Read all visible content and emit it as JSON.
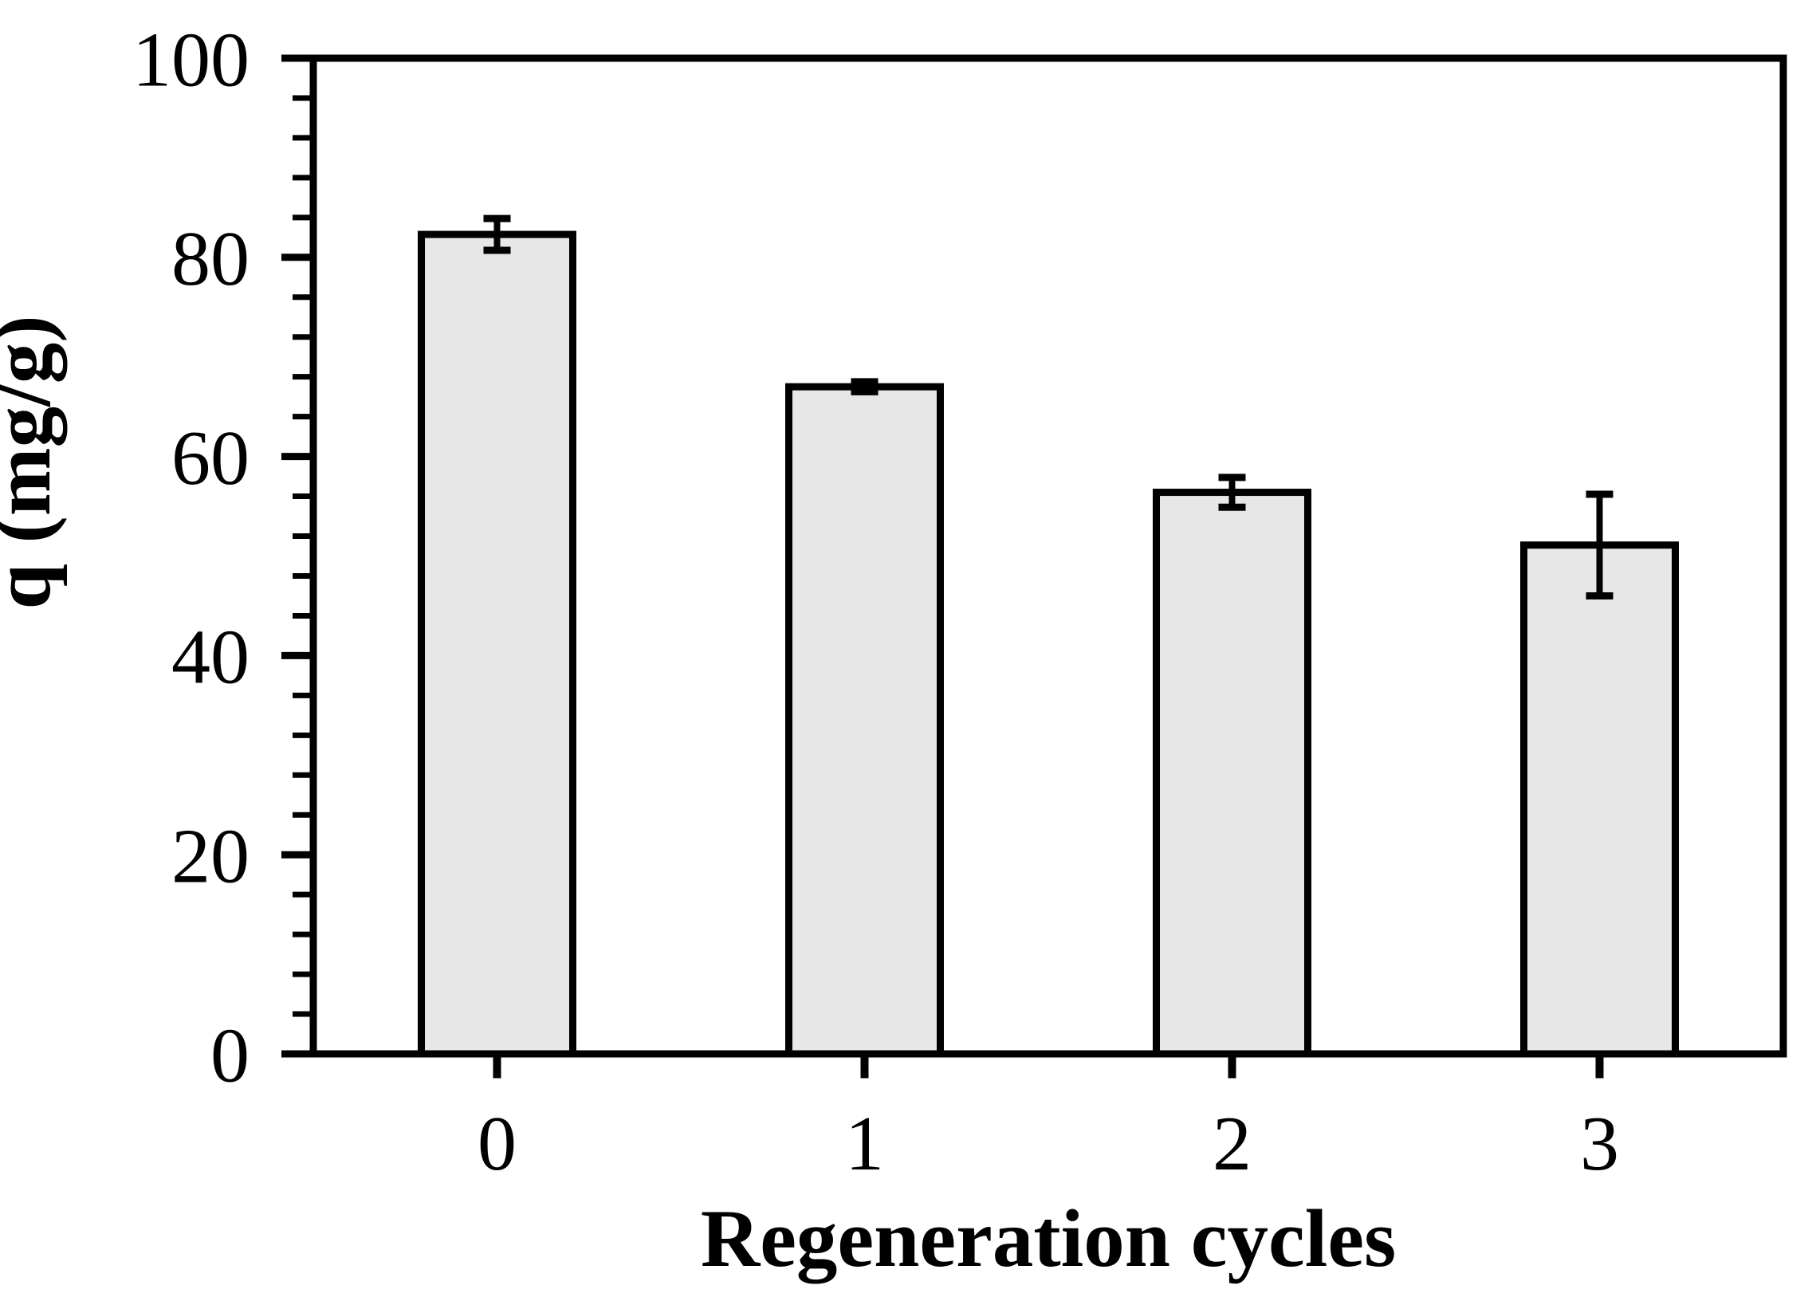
{
  "chart_data": {
    "type": "bar",
    "categories": [
      "0",
      "1",
      "2",
      "3"
    ],
    "values": [
      82.3,
      67.0,
      56.4,
      51.1
    ],
    "errors": [
      1.6,
      0.5,
      1.5,
      5.1
    ],
    "title": "",
    "xlabel": "Regeneration cycles",
    "ylabel": "q (mg/g)",
    "ylim": [
      0,
      100
    ],
    "ytick_values": [
      0,
      20,
      40,
      60,
      80,
      100
    ],
    "ytick_labels": [
      "0",
      "20",
      "40",
      "60",
      "80",
      "100"
    ],
    "yminor_step": 4,
    "grid": false,
    "legend": null,
    "colors": {
      "bar_fill": "#e7e7e7",
      "bar_edge": "#000000",
      "axis": "#000000",
      "text": "#000000",
      "background": "#ffffff"
    }
  }
}
